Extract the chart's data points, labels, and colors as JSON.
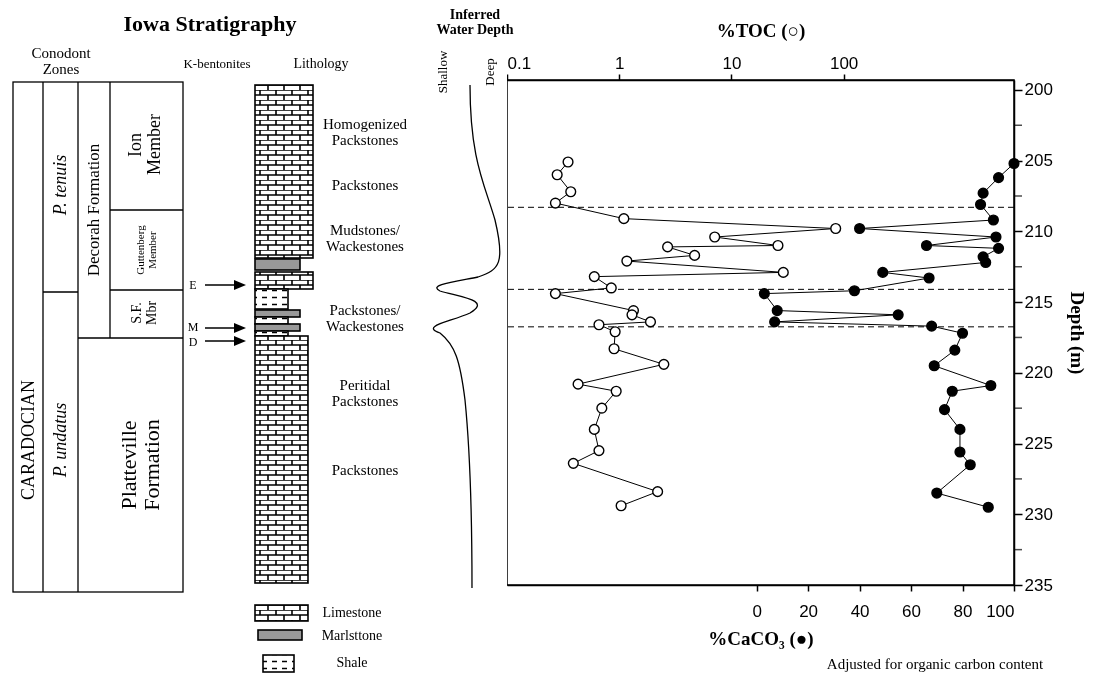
{
  "chart_data": [
    {
      "type": "other",
      "title": "Iowa Stratigraphy",
      "annotations": [
        "Conodont Zones",
        "K-bentonites",
        "Lithology",
        "CARADOCIAN",
        "P. tenuis",
        "P. undatus",
        "Decorah Formation",
        "Ion Member",
        "Guttenberg Member",
        "S.F. Mbr",
        "Platteville Formation",
        "E",
        "M",
        "D",
        "Homogenized Packstones",
        "Packstones",
        "Mudstones/Wackestones",
        "Packstones/Wackestones",
        "Peritidal Packstones",
        "Packstones",
        "Limestone",
        "Marlsttone",
        "Shale",
        "Inferred Water Depth",
        "Shallow",
        "Deep"
      ]
    },
    {
      "type": "line",
      "x2label": "%TOC (○)",
      "xlabel": "%CaCO₃ (●)",
      "ylabel": "Depth (m)",
      "annotations": [
        "Adjusted for organic carbon content"
      ],
      "xlim": [
        -97,
        100
      ],
      "xticks": [
        0,
        20,
        40,
        60,
        80,
        100
      ],
      "x2lim": [
        0.1,
        3300
      ],
      "x2ticks": [
        0.1,
        1,
        10,
        100
      ],
      "log": "x2",
      "ylim": [
        235,
        199.3
      ],
      "yticks": [
        200,
        {
          "value": 202.5,
          "label": null
        },
        205,
        {
          "value": 207.5,
          "label": null
        },
        210,
        {
          "value": 212.5,
          "label": null
        },
        215,
        {
          "value": 217.5,
          "label": null
        },
        220,
        {
          "value": 222.5,
          "label": null
        },
        225,
        {
          "value": 227.5,
          "label": null
        },
        230,
        {
          "value": 232.5,
          "label": null
        },
        235
      ],
      "marker": "circle",
      "ref_lines": [
        {
          "axis": "y",
          "value": 208.3,
          "line_style": "dashed"
        },
        {
          "axis": "y",
          "value": 214.1,
          "line_style": "dashed"
        },
        {
          "axis": "y",
          "value": 216.75,
          "line_style": "dashed"
        }
      ],
      "series": [
        {
          "axis": "x2",
          "color": "#000000",
          "x": [
            0.35,
            0.28,
            0.37,
            0.27,
            1.1,
            85,
            7.1,
            26,
            2.7,
            4.7,
            1.17,
            29,
            0.6,
            0.85,
            0.27,
            1.34,
            1.3,
            1.9,
            0.66,
            0.92,
            0.9,
            2.5,
            0.43,
            0.94,
            0.7,
            0.6,
            0.66,
            0.39,
            2.2,
            1.04
          ],
          "values": [
            205.1,
            206.0,
            207.2,
            208.0,
            209.1,
            209.8,
            210.4,
            211.0,
            211.1,
            211.7,
            212.1,
            212.9,
            213.2,
            214.0,
            214.4,
            215.6,
            215.9,
            216.4,
            216.6,
            217.1,
            218.3,
            219.4,
            220.8,
            221.3,
            222.5,
            224.0,
            225.5,
            226.4,
            228.4,
            229.4
          ]
        },
        {
          "color": "#000000",
          "x": [
            100,
            94,
            88,
            87,
            92,
            40,
            93,
            66,
            94,
            88,
            89,
            49,
            67,
            38,
            3,
            8,
            55,
            7,
            68,
            80,
            77,
            69,
            91,
            76,
            73,
            79,
            79,
            83,
            70,
            90
          ],
          "values": [
            205.2,
            206.2,
            207.3,
            208.1,
            209.2,
            209.8,
            210.4,
            211.0,
            211.2,
            211.8,
            212.2,
            212.9,
            213.3,
            214.2,
            214.4,
            215.6,
            215.9,
            216.4,
            216.7,
            217.2,
            218.4,
            219.5,
            220.9,
            221.3,
            222.6,
            224.0,
            225.6,
            226.5,
            228.5,
            229.5
          ]
        }
      ]
    }
  ]
}
